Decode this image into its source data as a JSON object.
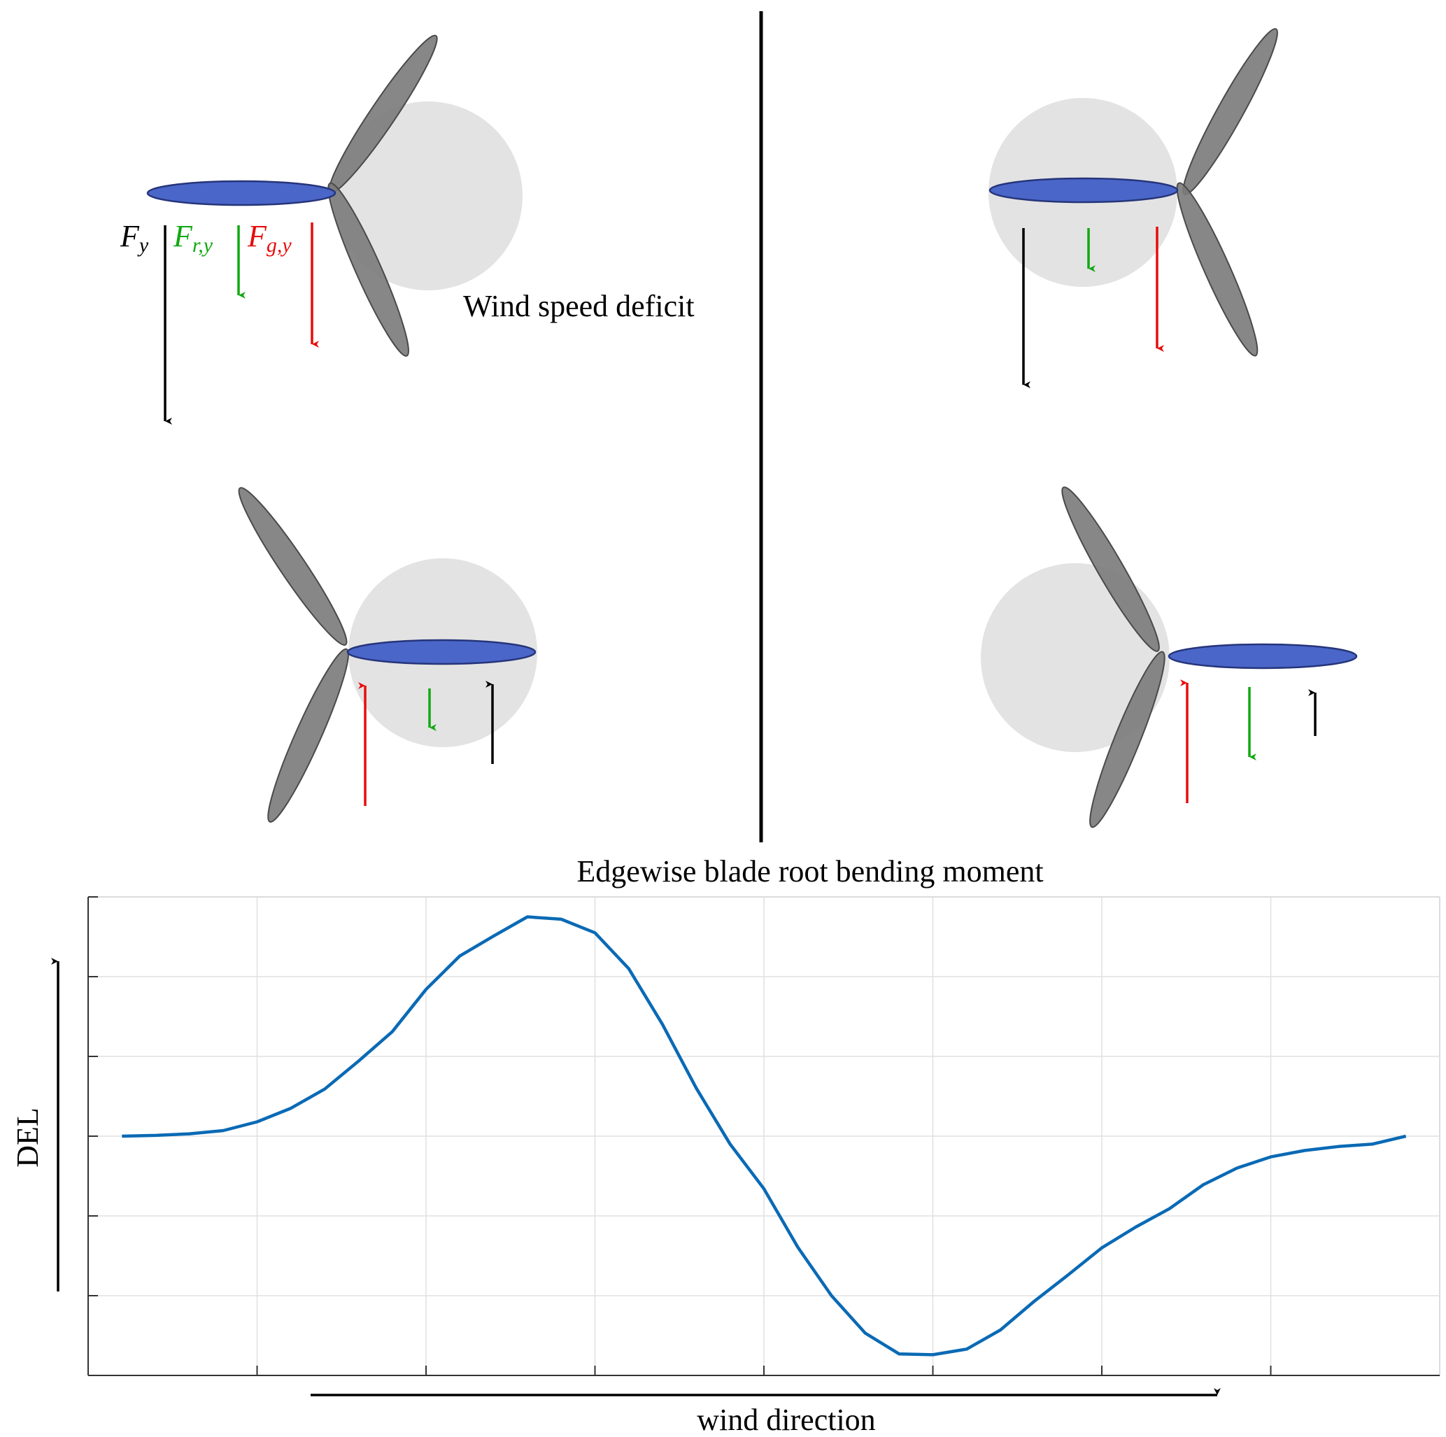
{
  "annotation": {
    "wake_label": "Wind speed deficit"
  },
  "force_labels": {
    "total": {
      "base": "F",
      "sub": "y"
    },
    "rotor": {
      "base": "F",
      "sub": "r,y"
    },
    "gravity": {
      "base": "F",
      "sub": "g,y"
    }
  },
  "colors": {
    "total_force": "#000000",
    "rotor_force": "#11a811",
    "gravity_force": "#e80c0c",
    "highlight_blade": "#4a66c9",
    "other_blades": "#7a7a7a",
    "wake_region": "#e3e3e3",
    "curve": "#0a6ab5"
  },
  "panels": [
    {
      "id": "top-left",
      "forces": {
        "total": "down",
        "rotor": "down",
        "gravity": "down"
      }
    },
    {
      "id": "top-right",
      "forces": {
        "total": "down",
        "rotor": "down",
        "gravity": "down"
      }
    },
    {
      "id": "bottom-left",
      "forces": {
        "total": "up",
        "rotor": "down",
        "gravity": "up"
      }
    },
    {
      "id": "bottom-right",
      "forces": {
        "total": "up",
        "rotor": "down",
        "gravity": "up"
      }
    }
  ],
  "chart_data": {
    "type": "line",
    "title": "Edgewise blade root bending moment",
    "xlabel": "wind direction",
    "ylabel": "DEL",
    "grid": true,
    "x_ticks": 8,
    "y_ticks": 6,
    "xlim": [
      0,
      8
    ],
    "ylim": [
      0,
      6
    ],
    "series": [
      {
        "values": [
          [
            0.2,
            3.0
          ],
          [
            0.4,
            3.01
          ],
          [
            0.6,
            3.03
          ],
          [
            0.8,
            3.07
          ],
          [
            1.0,
            3.18
          ],
          [
            1.2,
            3.35
          ],
          [
            1.4,
            3.59
          ],
          [
            1.6,
            3.94
          ],
          [
            1.8,
            4.31
          ],
          [
            2.0,
            4.84
          ],
          [
            2.2,
            5.26
          ],
          [
            2.4,
            5.51
          ],
          [
            2.6,
            5.75
          ],
          [
            2.8,
            5.72
          ],
          [
            3.0,
            5.55
          ],
          [
            3.2,
            5.1
          ],
          [
            3.4,
            4.4
          ],
          [
            3.6,
            3.6
          ],
          [
            3.8,
            2.9
          ],
          [
            4.0,
            2.34
          ],
          [
            4.2,
            1.61
          ],
          [
            4.4,
            1.0
          ],
          [
            4.6,
            0.53
          ],
          [
            4.8,
            0.27
          ],
          [
            5.0,
            0.26
          ],
          [
            5.2,
            0.33
          ],
          [
            5.4,
            0.57
          ],
          [
            5.6,
            0.93
          ],
          [
            5.8,
            1.26
          ],
          [
            6.0,
            1.6
          ],
          [
            6.2,
            1.86
          ],
          [
            6.4,
            2.09
          ],
          [
            6.6,
            2.39
          ],
          [
            6.8,
            2.6
          ],
          [
            7.0,
            2.74
          ],
          [
            7.2,
            2.82
          ],
          [
            7.4,
            2.87
          ],
          [
            7.6,
            2.9
          ],
          [
            7.8,
            3.0
          ]
        ]
      }
    ]
  }
}
